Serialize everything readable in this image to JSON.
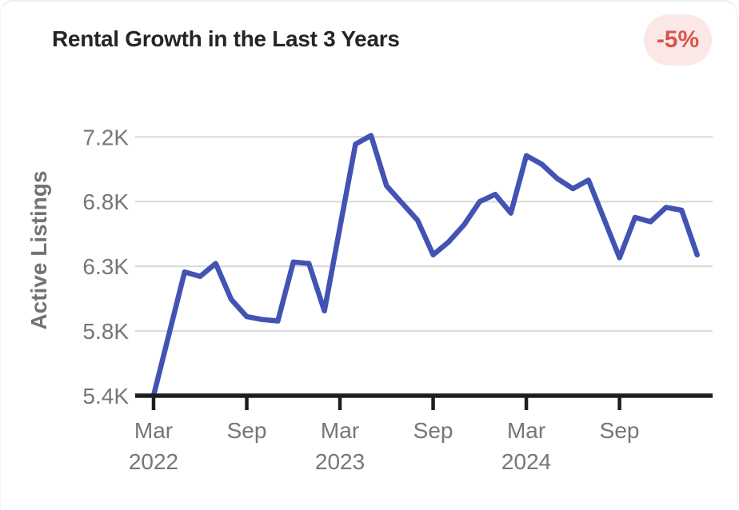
{
  "card": {
    "title": "Rental Growth in the Last 3 Years",
    "badge": {
      "label": "-5%",
      "bg": "#fbe8e6",
      "text_color": "#d9544e"
    }
  },
  "chart_data": {
    "type": "line",
    "title": "Rental Growth in the Last 3 Years",
    "xlabel": "",
    "ylabel": "Active Listings",
    "grid": true,
    "legend": "none",
    "ylim": [
      5400,
      7200
    ],
    "line_color": "#4253b4",
    "grid_color": "#d8d8d8",
    "axis_color": "#1d1e20",
    "label_color": "#76767a",
    "categories": [
      "Mar 2022",
      "Apr 2022",
      "May 2022",
      "Jun 2022",
      "Jul 2022",
      "Aug 2022",
      "Sep 2022",
      "Oct 2022",
      "Nov 2022",
      "Dec 2022",
      "Jan 2023",
      "Feb 2023",
      "Mar 2023",
      "Apr 2023",
      "May 2023",
      "Jun 2023",
      "Jul 2023",
      "Aug 2023",
      "Sep 2023",
      "Oct 2023",
      "Nov 2023",
      "Dec 2023",
      "Jan 2024",
      "Feb 2024",
      "Mar 2024",
      "Apr 2024",
      "May 2024",
      "Jun 2024",
      "Jul 2024",
      "Aug 2024",
      "Sep 2024",
      "Oct 2024",
      "Nov 2024",
      "Dec 2024",
      "Jan 2025",
      "Feb 2025"
    ],
    "series": [
      {
        "name": "Active Listings",
        "values": [
          5400,
          5830,
          6260,
          6230,
          6320,
          6070,
          5950,
          5930,
          5920,
          6330,
          6320,
          5990,
          6570,
          7150,
          7210,
          6860,
          6740,
          6620,
          6380,
          6470,
          6590,
          6750,
          6800,
          6670,
          7070,
          7010,
          6910,
          6840,
          6900,
          6630,
          6360,
          6640,
          6610,
          6710,
          6690,
          6380
        ]
      }
    ],
    "y_ticks": [
      {
        "label": "7.2K",
        "value": 7200
      },
      {
        "label": "6.8K",
        "value": 6750
      },
      {
        "label": "6.3K",
        "value": 6300
      },
      {
        "label": "5.8K",
        "value": 5850
      },
      {
        "label": "5.4K",
        "value": 5400
      }
    ],
    "x_ticks": [
      {
        "month_index": 0,
        "label": "Mar",
        "year": "2022"
      },
      {
        "month_index": 6,
        "label": "Sep",
        "year": ""
      },
      {
        "month_index": 12,
        "label": "Mar",
        "year": "2023"
      },
      {
        "month_index": 18,
        "label": "Sep",
        "year": ""
      },
      {
        "month_index": 24,
        "label": "Mar",
        "year": "2024"
      },
      {
        "month_index": 30,
        "label": "Sep",
        "year": ""
      }
    ]
  }
}
